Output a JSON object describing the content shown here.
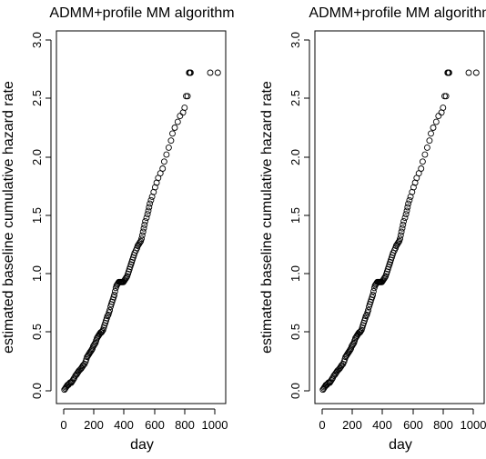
{
  "chart_data": [
    {
      "type": "scatter",
      "title": "ADMM+profile MM algorithm",
      "xlabel": "day",
      "ylabel": "estimated baseline cumulative hazard rate",
      "xlim": [
        0,
        1030
      ],
      "ylim": [
        -0.1,
        3.1
      ],
      "x_ticks": [
        0,
        200,
        400,
        600,
        800,
        1000
      ],
      "x_tick_labels": [
        "0",
        "200",
        "400",
        "600",
        "800",
        "1000"
      ],
      "y_ticks": [
        0.0,
        0.5,
        1.0,
        1.5,
        2.0,
        2.5,
        3.0
      ],
      "y_tick_labels": [
        "0.0",
        "0.5",
        "1.0",
        "1.5",
        "2.0",
        "2.5",
        "3.0"
      ],
      "grid": false,
      "marker": "open-circle",
      "series": [
        {
          "x": [
            5,
            10,
            15,
            20,
            25,
            30,
            35,
            42,
            50,
            55,
            60,
            65,
            70,
            78,
            85,
            90,
            95,
            100,
            108,
            115,
            120,
            125,
            130,
            138,
            145,
            150,
            155,
            160,
            165,
            170,
            175,
            180,
            185,
            190,
            195,
            200,
            205,
            210,
            215,
            220,
            225,
            230,
            235,
            240,
            245,
            250,
            255,
            260,
            265,
            270,
            275,
            280,
            285,
            290,
            295,
            300,
            305,
            310,
            315,
            320,
            325,
            330,
            335,
            340,
            345,
            350,
            355,
            360,
            365,
            370,
            375,
            380,
            385,
            390,
            395,
            400,
            405,
            410,
            415,
            420,
            425,
            430,
            435,
            440,
            445,
            450,
            455,
            460,
            465,
            470,
            478,
            485,
            490,
            495,
            500,
            505,
            510,
            515,
            520,
            525,
            530,
            535,
            540,
            548,
            555,
            560,
            565,
            570,
            578,
            585,
            595,
            605,
            615,
            625,
            640,
            655,
            665,
            680,
            695,
            710,
            720,
            735,
            755,
            770,
            790,
            800,
            810,
            820,
            830,
            835,
            840,
            970,
            1020
          ],
          "y": [
            0.01,
            0.02,
            0.03,
            0.04,
            0.05,
            0.05,
            0.06,
            0.07,
            0.07,
            0.08,
            0.09,
            0.1,
            0.11,
            0.13,
            0.14,
            0.15,
            0.16,
            0.17,
            0.18,
            0.19,
            0.2,
            0.21,
            0.22,
            0.23,
            0.25,
            0.27,
            0.29,
            0.3,
            0.31,
            0.32,
            0.33,
            0.34,
            0.35,
            0.36,
            0.38,
            0.39,
            0.4,
            0.41,
            0.43,
            0.45,
            0.46,
            0.47,
            0.48,
            0.49,
            0.5,
            0.5,
            0.51,
            0.52,
            0.54,
            0.56,
            0.58,
            0.6,
            0.62,
            0.64,
            0.65,
            0.67,
            0.69,
            0.72,
            0.74,
            0.76,
            0.78,
            0.8,
            0.82,
            0.85,
            0.88,
            0.9,
            0.91,
            0.92,
            0.93,
            0.93,
            0.93,
            0.93,
            0.93,
            0.93,
            0.93,
            0.94,
            0.95,
            0.96,
            0.97,
            0.98,
            1.0,
            1.02,
            1.04,
            1.06,
            1.08,
            1.1,
            1.12,
            1.14,
            1.16,
            1.18,
            1.2,
            1.22,
            1.24,
            1.25,
            1.26,
            1.27,
            1.28,
            1.3,
            1.33,
            1.36,
            1.39,
            1.42,
            1.45,
            1.48,
            1.51,
            1.54,
            1.57,
            1.6,
            1.63,
            1.66,
            1.7,
            1.74,
            1.78,
            1.82,
            1.86,
            1.9,
            1.96,
            2.02,
            2.08,
            2.14,
            2.2,
            2.25,
            2.3,
            2.35,
            2.38,
            2.42,
            2.52,
            2.52,
            2.72,
            2.72,
            2.72,
            2.72,
            2.72
          ]
        }
      ]
    },
    {
      "type": "scatter",
      "title": "ADMM+profile MM algorithm",
      "xlabel": "day",
      "ylabel": "estimated baseline cumulative hazard rate",
      "xlim": [
        0,
        1030
      ],
      "ylim": [
        -0.1,
        3.1
      ],
      "x_ticks": [
        0,
        200,
        400,
        600,
        800,
        1000
      ],
      "x_tick_labels": [
        "0",
        "200",
        "400",
        "600",
        "800",
        "1000"
      ],
      "y_ticks": [
        0.0,
        0.5,
        1.0,
        1.5,
        2.0,
        2.5,
        3.0
      ],
      "y_tick_labels": [
        "0.0",
        "0.5",
        "1.0",
        "1.5",
        "2.0",
        "2.5",
        "3.0"
      ],
      "grid": false,
      "marker": "open-circle",
      "series": [
        {
          "x": [
            5,
            10,
            15,
            20,
            25,
            30,
            35,
            42,
            50,
            55,
            60,
            65,
            70,
            78,
            85,
            90,
            95,
            100,
            108,
            115,
            120,
            125,
            130,
            138,
            145,
            150,
            155,
            160,
            165,
            170,
            175,
            180,
            185,
            190,
            195,
            200,
            205,
            210,
            215,
            220,
            225,
            230,
            235,
            240,
            245,
            250,
            255,
            260,
            265,
            270,
            275,
            280,
            285,
            290,
            295,
            300,
            305,
            310,
            315,
            320,
            325,
            330,
            335,
            340,
            345,
            350,
            355,
            360,
            365,
            370,
            375,
            380,
            385,
            390,
            395,
            400,
            405,
            410,
            415,
            420,
            425,
            430,
            435,
            440,
            445,
            450,
            455,
            460,
            465,
            470,
            478,
            485,
            490,
            495,
            500,
            505,
            510,
            515,
            520,
            525,
            530,
            535,
            540,
            548,
            555,
            560,
            565,
            570,
            578,
            585,
            595,
            605,
            615,
            625,
            640,
            655,
            665,
            680,
            695,
            710,
            720,
            735,
            755,
            770,
            790,
            800,
            810,
            820,
            830,
            835,
            840,
            970,
            1020
          ],
          "y": [
            0.01,
            0.02,
            0.03,
            0.04,
            0.05,
            0.05,
            0.06,
            0.07,
            0.07,
            0.08,
            0.09,
            0.1,
            0.11,
            0.13,
            0.14,
            0.15,
            0.16,
            0.17,
            0.18,
            0.19,
            0.2,
            0.21,
            0.22,
            0.23,
            0.25,
            0.27,
            0.29,
            0.3,
            0.31,
            0.32,
            0.33,
            0.34,
            0.35,
            0.36,
            0.38,
            0.39,
            0.4,
            0.41,
            0.43,
            0.45,
            0.46,
            0.47,
            0.48,
            0.49,
            0.5,
            0.5,
            0.51,
            0.52,
            0.54,
            0.56,
            0.58,
            0.6,
            0.62,
            0.64,
            0.65,
            0.67,
            0.69,
            0.72,
            0.74,
            0.76,
            0.78,
            0.8,
            0.82,
            0.85,
            0.88,
            0.9,
            0.91,
            0.92,
            0.93,
            0.93,
            0.93,
            0.93,
            0.93,
            0.93,
            0.93,
            0.94,
            0.95,
            0.96,
            0.97,
            0.98,
            1.0,
            1.02,
            1.04,
            1.06,
            1.08,
            1.1,
            1.12,
            1.14,
            1.16,
            1.18,
            1.2,
            1.22,
            1.24,
            1.25,
            1.26,
            1.27,
            1.28,
            1.3,
            1.33,
            1.36,
            1.39,
            1.42,
            1.45,
            1.48,
            1.51,
            1.54,
            1.57,
            1.6,
            1.63,
            1.66,
            1.7,
            1.74,
            1.78,
            1.82,
            1.86,
            1.9,
            1.96,
            2.02,
            2.08,
            2.14,
            2.2,
            2.25,
            2.3,
            2.35,
            2.38,
            2.42,
            2.52,
            2.52,
            2.72,
            2.72,
            2.72,
            2.72,
            2.72
          ]
        }
      ]
    }
  ]
}
